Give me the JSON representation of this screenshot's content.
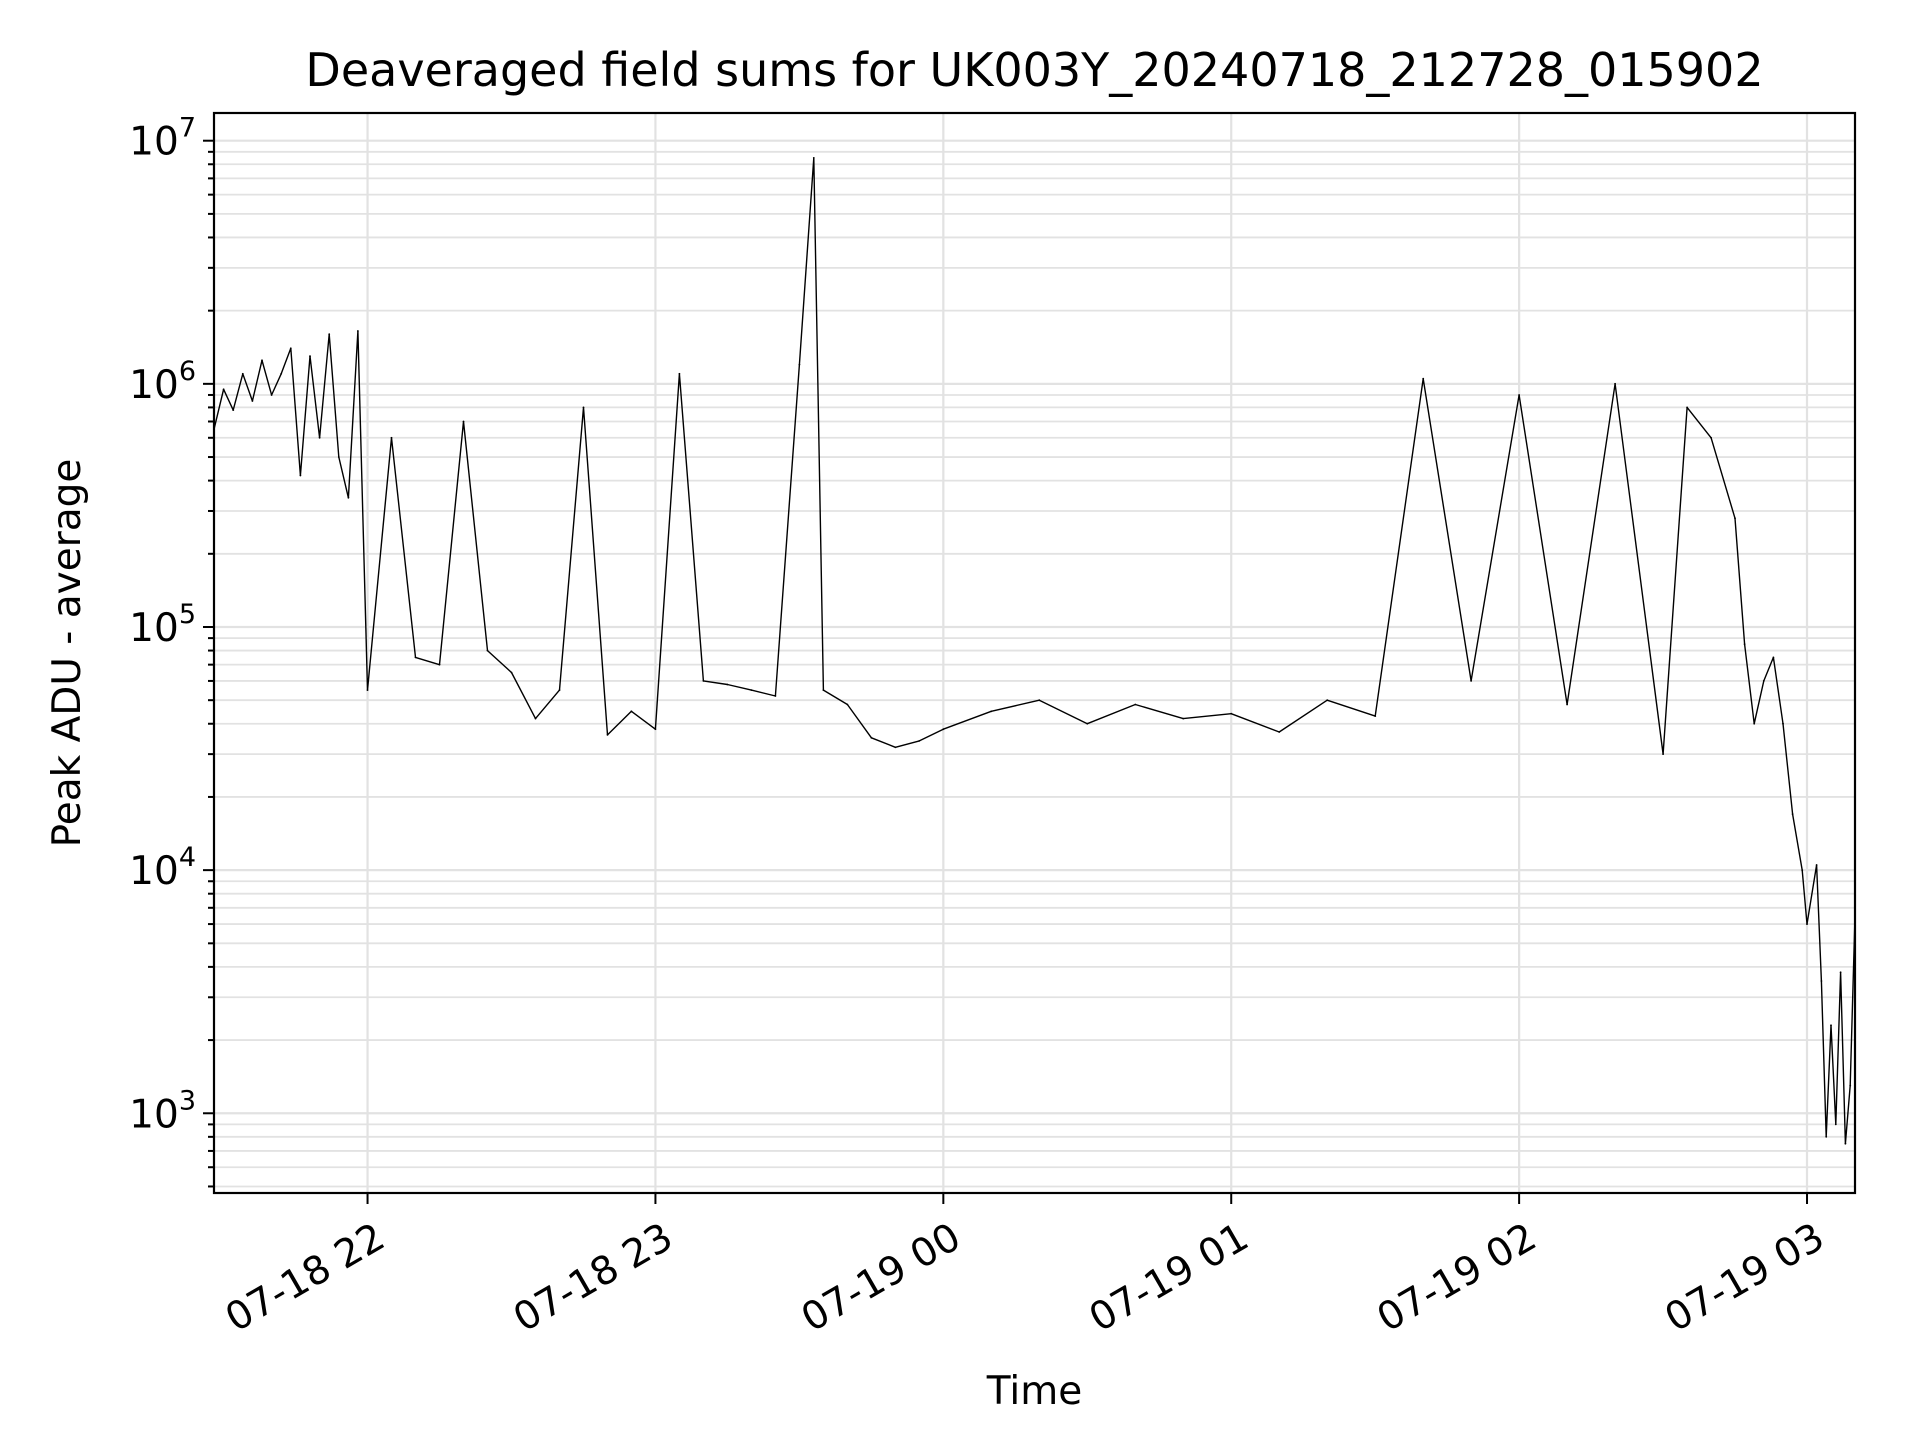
{
  "chart_data": {
    "type": "line",
    "title": "Deaveraged field sums for UK003Y_20240718_212728_015902",
    "xlabel": "Time",
    "ylabel": "Peak ADU - average",
    "y_scale": "log",
    "grid": "major and minor",
    "x_range": [
      "2024-07-18 21:28",
      "2024-07-19 03:10"
    ],
    "ylim": [
      470,
      13000000
    ],
    "x_ticks": [
      {
        "time": "2024-07-18 22:00",
        "label": "07-18 22"
      },
      {
        "time": "2024-07-18 23:00",
        "label": "07-18 23"
      },
      {
        "time": "2024-07-19 00:00",
        "label": "07-19 00"
      },
      {
        "time": "2024-07-19 01:00",
        "label": "07-19 01"
      },
      {
        "time": "2024-07-19 02:00",
        "label": "07-19 02"
      },
      {
        "time": "2024-07-19 03:00",
        "label": "07-19 03"
      }
    ],
    "y_ticks": [
      {
        "value": 1000,
        "base": "10",
        "exp": "3"
      },
      {
        "value": 10000,
        "base": "10",
        "exp": "4"
      },
      {
        "value": 100000,
        "base": "10",
        "exp": "5"
      },
      {
        "value": 1000000,
        "base": "10",
        "exp": "6"
      },
      {
        "value": 10000000,
        "base": "10",
        "exp": "7"
      }
    ],
    "series": [
      {
        "color": "#000000",
        "points": [
          [
            "2024-07-18 21:28",
            650000
          ],
          [
            "2024-07-18 21:30",
            950000
          ],
          [
            "2024-07-18 21:32",
            780000
          ],
          [
            "2024-07-18 21:34",
            1100000
          ],
          [
            "2024-07-18 21:36",
            850000
          ],
          [
            "2024-07-18 21:38",
            1250000
          ],
          [
            "2024-07-18 21:40",
            900000
          ],
          [
            "2024-07-18 21:42",
            1100000
          ],
          [
            "2024-07-18 21:44",
            1400000
          ],
          [
            "2024-07-18 21:46",
            420000
          ],
          [
            "2024-07-18 21:48",
            1300000
          ],
          [
            "2024-07-18 21:50",
            600000
          ],
          [
            "2024-07-18 21:52",
            1600000
          ],
          [
            "2024-07-18 21:54",
            500000
          ],
          [
            "2024-07-18 21:56",
            340000
          ],
          [
            "2024-07-18 21:58",
            1650000
          ],
          [
            "2024-07-18 22:00",
            55000
          ],
          [
            "2024-07-18 22:05",
            600000
          ],
          [
            "2024-07-18 22:10",
            75000
          ],
          [
            "2024-07-18 22:15",
            70000
          ],
          [
            "2024-07-18 22:20",
            700000
          ],
          [
            "2024-07-18 22:25",
            80000
          ],
          [
            "2024-07-18 22:30",
            65000
          ],
          [
            "2024-07-18 22:35",
            42000
          ],
          [
            "2024-07-18 22:40",
            55000
          ],
          [
            "2024-07-18 22:45",
            800000
          ],
          [
            "2024-07-18 22:50",
            36000
          ],
          [
            "2024-07-18 22:55",
            45000
          ],
          [
            "2024-07-18 23:00",
            38000
          ],
          [
            "2024-07-18 23:05",
            1100000
          ],
          [
            "2024-07-18 23:10",
            60000
          ],
          [
            "2024-07-18 23:15",
            58000
          ],
          [
            "2024-07-18 23:20",
            55000
          ],
          [
            "2024-07-18 23:25",
            52000
          ],
          [
            "2024-07-18 23:30",
            1200000
          ],
          [
            "2024-07-18 23:33",
            8500000
          ],
          [
            "2024-07-18 23:35",
            55000
          ],
          [
            "2024-07-18 23:40",
            48000
          ],
          [
            "2024-07-18 23:45",
            35000
          ],
          [
            "2024-07-18 23:50",
            32000
          ],
          [
            "2024-07-18 23:55",
            34000
          ],
          [
            "2024-07-19 00:00",
            38000
          ],
          [
            "2024-07-19 00:10",
            45000
          ],
          [
            "2024-07-19 00:20",
            50000
          ],
          [
            "2024-07-19 00:30",
            40000
          ],
          [
            "2024-07-19 00:40",
            48000
          ],
          [
            "2024-07-19 00:50",
            42000
          ],
          [
            "2024-07-19 01:00",
            44000
          ],
          [
            "2024-07-19 01:10",
            37000
          ],
          [
            "2024-07-19 01:20",
            50000
          ],
          [
            "2024-07-19 01:30",
            43000
          ],
          [
            "2024-07-19 01:40",
            1050000
          ],
          [
            "2024-07-19 01:50",
            60000
          ],
          [
            "2024-07-19 02:00",
            900000
          ],
          [
            "2024-07-19 02:10",
            48000
          ],
          [
            "2024-07-19 02:20",
            1000000
          ],
          [
            "2024-07-19 02:30",
            30000
          ],
          [
            "2024-07-19 02:35",
            800000
          ],
          [
            "2024-07-19 02:40",
            600000
          ],
          [
            "2024-07-19 02:45",
            280000
          ],
          [
            "2024-07-19 02:47",
            85000
          ],
          [
            "2024-07-19 02:49",
            40000
          ],
          [
            "2024-07-19 02:51",
            60000
          ],
          [
            "2024-07-19 02:53",
            75000
          ],
          [
            "2024-07-19 02:55",
            40000
          ],
          [
            "2024-07-19 02:57",
            17000
          ],
          [
            "2024-07-19 02:59",
            10000
          ],
          [
            "2024-07-19 03:00",
            6000
          ],
          [
            "2024-07-19 03:02",
            10500
          ],
          [
            "2024-07-19 03:03",
            3500
          ],
          [
            "2024-07-19 03:04",
            800
          ],
          [
            "2024-07-19 03:05",
            2300
          ],
          [
            "2024-07-19 03:06",
            900
          ],
          [
            "2024-07-19 03:07",
            3800
          ],
          [
            "2024-07-19 03:08",
            750
          ],
          [
            "2024-07-19 03:09",
            1300
          ],
          [
            "2024-07-19 03:10",
            6500
          ]
        ]
      }
    ]
  }
}
